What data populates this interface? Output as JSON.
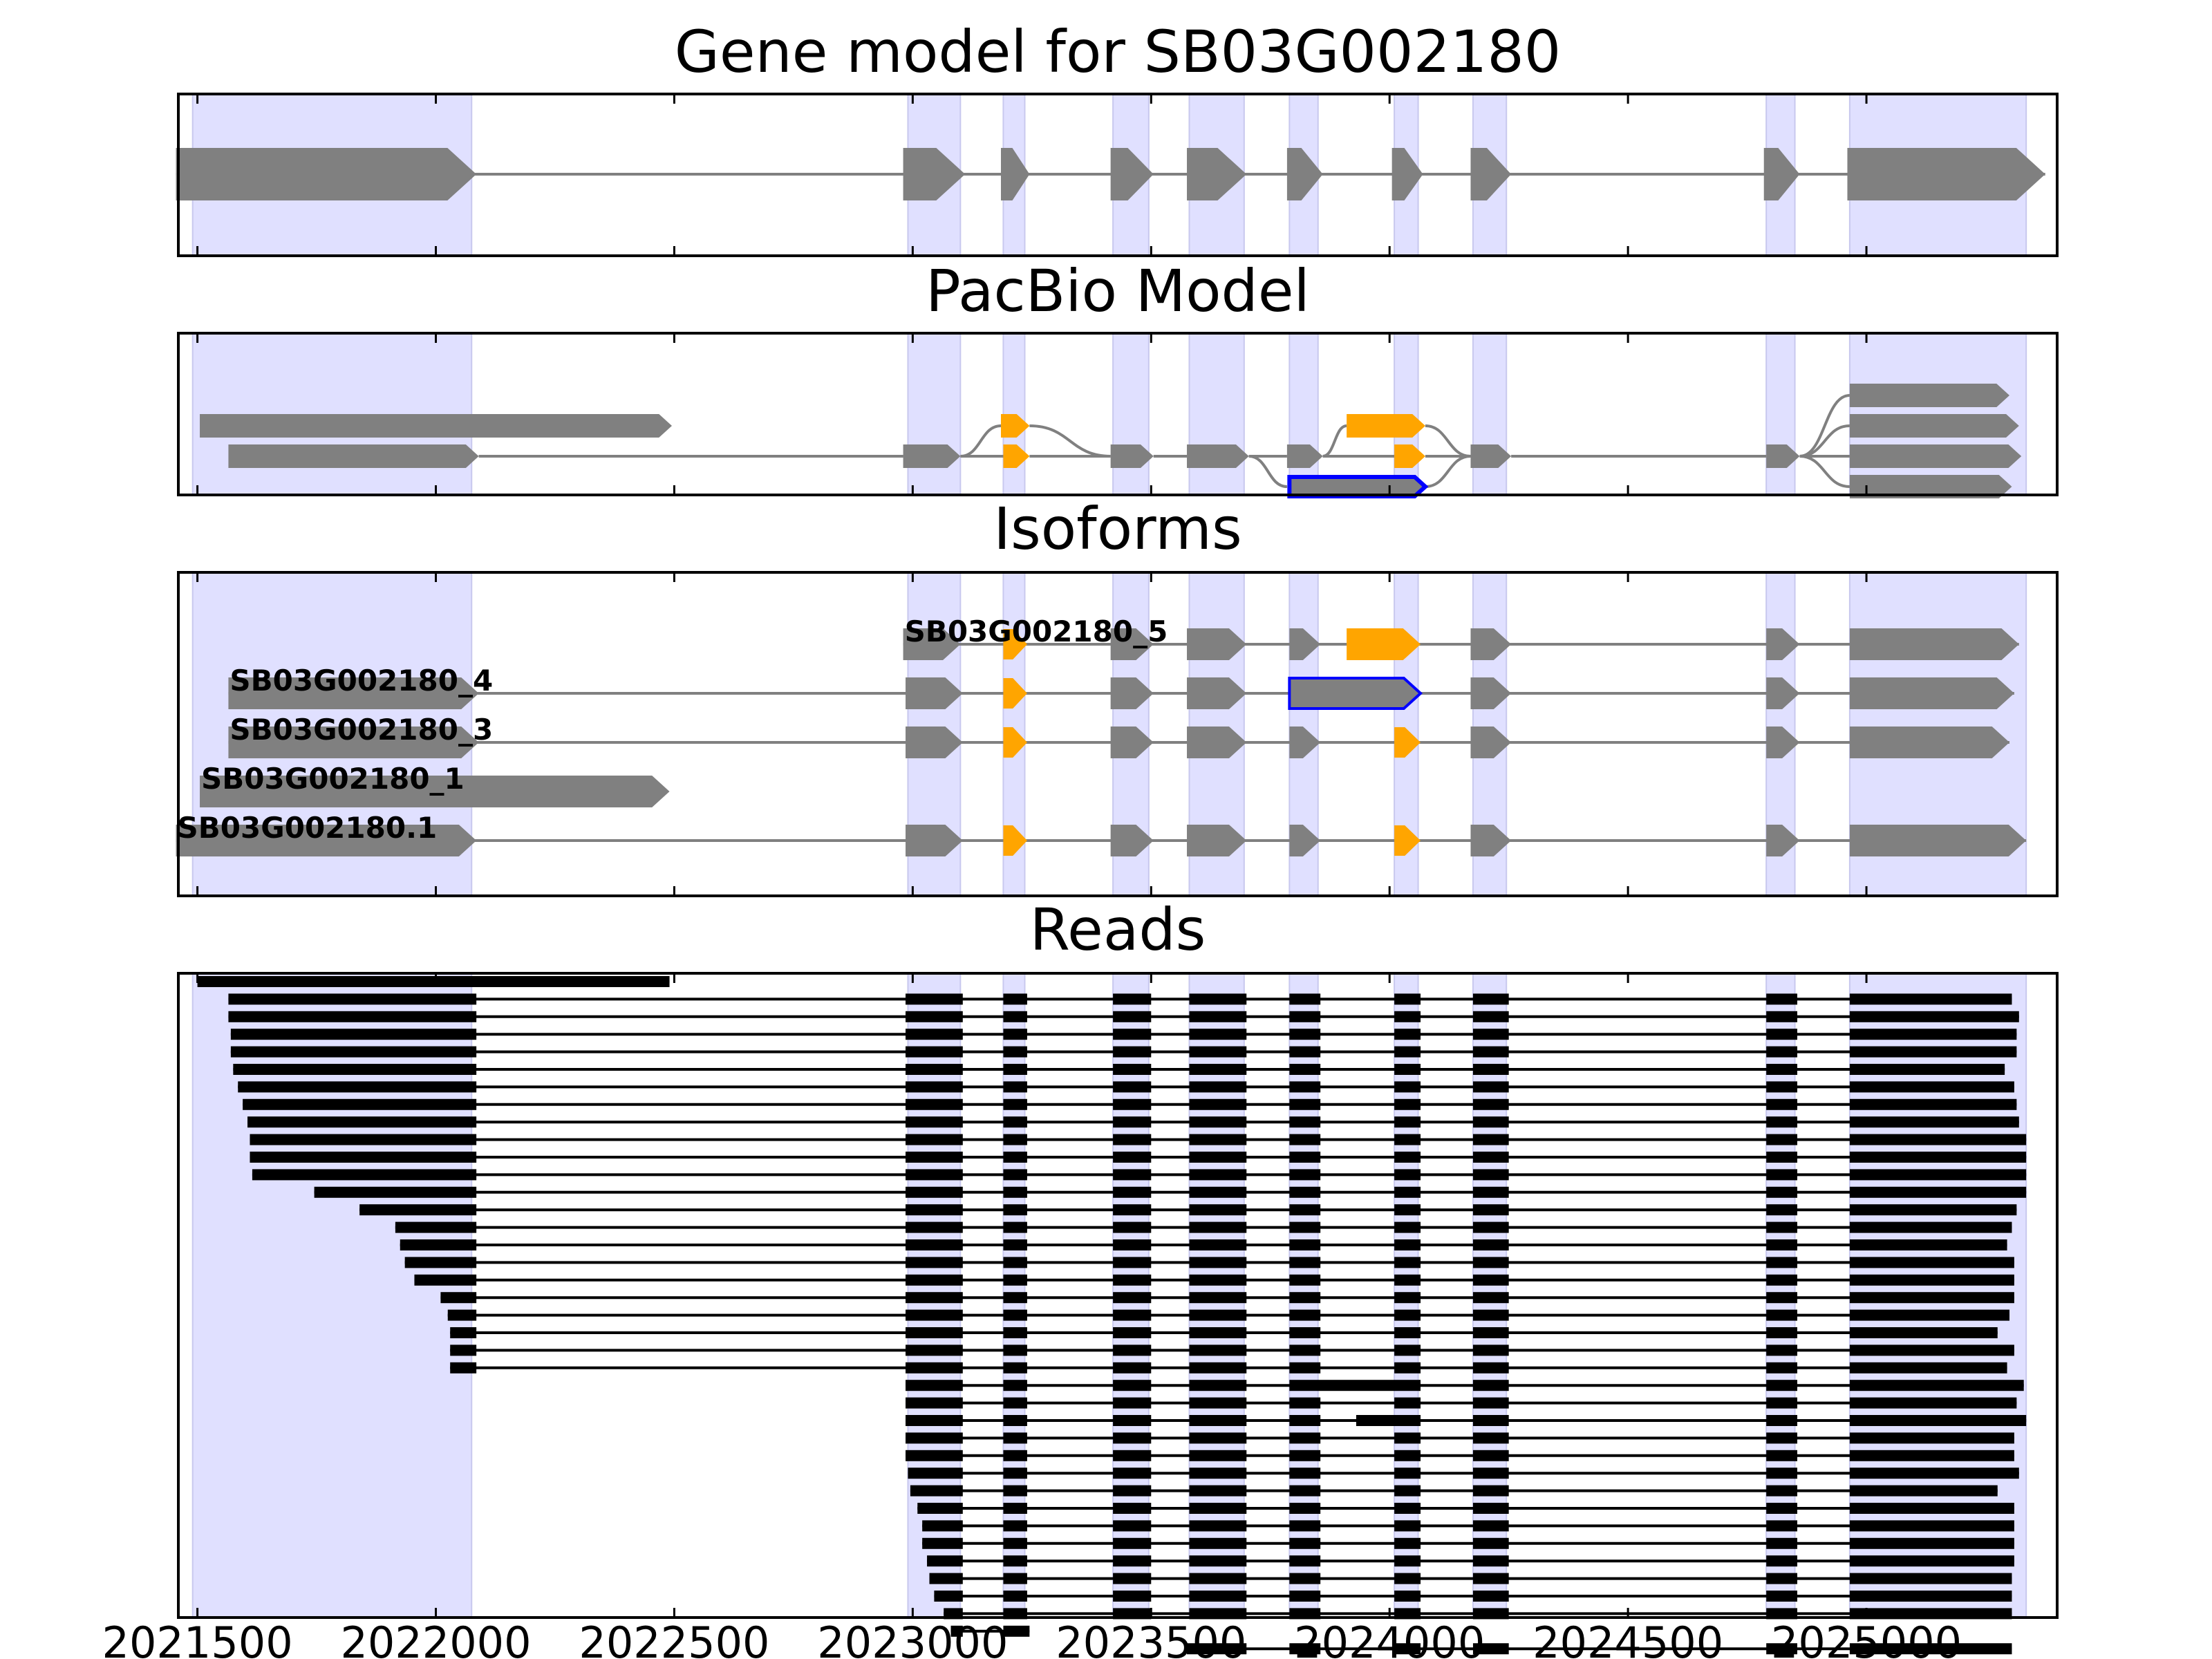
{
  "chart_data": {
    "type": "gene-model",
    "xlim": [
      2021460,
      2025400
    ],
    "x_ticks": [
      "2021500",
      "2022000",
      "2022500",
      "2023000",
      "2023500",
      "2024000",
      "2024500",
      "2025000"
    ],
    "colors": {
      "exon": "#808080",
      "alt_exon": "#ffa500",
      "highlight": "#0000ff",
      "exon_region": "#e0e0ff",
      "read": "#000000",
      "intron": "#808080"
    },
    "exon_regions": [
      [
        2021490,
        2022075
      ],
      [
        2022990,
        2023100
      ],
      [
        2023190,
        2023235
      ],
      [
        2023420,
        2023495
      ],
      [
        2023580,
        2023695
      ],
      [
        2023790,
        2023850
      ],
      [
        2024010,
        2024060
      ],
      [
        2024175,
        2024245
      ],
      [
        2024790,
        2024850
      ],
      [
        2024965,
        2025335
      ]
    ],
    "panels": [
      {
        "title": "Gene model for SB03G002180",
        "features": [
          {
            "row": 0,
            "color": "exon",
            "exons": [
              [
                2021455,
                2022085
              ],
              [
                2022980,
                2023110
              ],
              [
                2023185,
                2023245
              ],
              [
                2023415,
                2023505
              ],
              [
                2023575,
                2023700
              ],
              [
                2023785,
                2023860
              ],
              [
                2024005,
                2024070
              ],
              [
                2024170,
                2024255
              ],
              [
                2024785,
                2024860
              ],
              [
                2024960,
                2025375
              ]
            ]
          }
        ],
        "curves": []
      },
      {
        "title": "PacBio Model",
        "features": [
          {
            "row": 0,
            "color": "exon",
            "exons": [
              [
                2021505,
                2022495
              ]
            ]
          },
          {
            "row": 1,
            "color": "exon",
            "exons": [
              [
                2021565,
                2022090
              ],
              [
                2022980,
                2023100
              ]
            ]
          },
          {
            "row": 0,
            "color": "alt_exon",
            "exons": [
              [
                2023185,
                2023245
              ]
            ]
          },
          {
            "row": 1,
            "color": "alt_exon",
            "exons": [
              [
                2023190,
                2023245
              ]
            ]
          },
          {
            "row": 1,
            "color": "exon",
            "exons": [
              [
                2023415,
                2023505
              ],
              [
                2023575,
                2023705
              ],
              [
                2023785,
                2023860
              ]
            ]
          },
          {
            "row": 0,
            "color": "alt_exon",
            "exons": [
              [
                2023910,
                2024075
              ]
            ]
          },
          {
            "row": 1,
            "color": "alt_exon",
            "exons": [
              [
                2024010,
                2024075
              ]
            ]
          },
          {
            "row": 2,
            "color": "highlight",
            "exons": [
              [
                2023790,
                2024075
              ]
            ]
          },
          {
            "row": 1,
            "color": "exon",
            "exons": [
              [
                2024170,
                2024255
              ],
              [
                2024790,
                2024860
              ]
            ]
          },
          {
            "row": -1,
            "color": "exon",
            "exons": [
              [
                2024965,
                2025300
              ]
            ]
          },
          {
            "row": 0,
            "color": "exon",
            "exons": [
              [
                2024965,
                2025320
              ]
            ]
          },
          {
            "row": 1,
            "color": "exon",
            "exons": [
              [
                2024965,
                2025325
              ]
            ]
          },
          {
            "row": 2,
            "color": "exon",
            "exons": [
              [
                2024965,
                2025305
              ]
            ]
          }
        ],
        "curves": [
          [
            2023100,
            1,
            2023185,
            0
          ],
          [
            2023100,
            1,
            2023190,
            1
          ],
          [
            2023245,
            0,
            2023415,
            1
          ],
          [
            2023245,
            1,
            2023415,
            1
          ],
          [
            2023705,
            1,
            2023785,
            2
          ],
          [
            2023705,
            1,
            2023785,
            1
          ],
          [
            2023860,
            1,
            2023910,
            0
          ],
          [
            2023860,
            1,
            2024010,
            1
          ],
          [
            2024075,
            0,
            2024170,
            1
          ],
          [
            2024075,
            1,
            2024170,
            1
          ],
          [
            2024075,
            2,
            2024170,
            1
          ],
          [
            2024860,
            1,
            2024965,
            -1
          ],
          [
            2024860,
            1,
            2024965,
            0
          ],
          [
            2024860,
            1,
            2024965,
            1
          ],
          [
            2024860,
            1,
            2024965,
            2
          ]
        ]
      },
      {
        "title": "Isoforms",
        "features": [
          {
            "row": 0,
            "label": "SB03G002180_5",
            "color": "exon",
            "exons": [
              [
                2022980,
                2023100
              ],
              [
                2023415,
                2023505
              ],
              [
                2023575,
                2023700
              ],
              [
                2023790,
                2023855
              ],
              [
                2024170,
                2024255
              ],
              [
                2024790,
                2024860
              ],
              [
                2024965,
                2025320
              ]
            ],
            "alt": [
              [
                2023910,
                2024065
              ]
            ],
            "alt_small": [
              [
                2023190,
                2023240
              ]
            ]
          },
          {
            "row": 1,
            "label": "SB03G002180_4",
            "color": "exon",
            "exons": [
              [
                2021565,
                2022090
              ],
              [
                2022985,
                2023105
              ],
              [
                2023415,
                2023505
              ],
              [
                2023575,
                2023700
              ],
              [
                2024170,
                2024255
              ],
              [
                2024790,
                2024860
              ],
              [
                2024965,
                2025310
              ]
            ],
            "alt_small": [
              [
                2023190,
                2023240
              ]
            ],
            "hl": [
              [
                2023790,
                2024065
              ]
            ]
          },
          {
            "row": 2,
            "label": "SB03G002180_3",
            "color": "exon",
            "exons": [
              [
                2021565,
                2022090
              ],
              [
                2022985,
                2023105
              ],
              [
                2023415,
                2023505
              ],
              [
                2023575,
                2023700
              ],
              [
                2023790,
                2023855
              ],
              [
                2024170,
                2024255
              ],
              [
                2024790,
                2024860
              ],
              [
                2024965,
                2025300
              ]
            ],
            "alt_small": [
              [
                2023190,
                2023240
              ],
              [
                2024010,
                2024065
              ]
            ]
          },
          {
            "row": 3,
            "label": "SB03G002180_1",
            "color": "exon",
            "exons": [
              [
                2021505,
                2022490
              ]
            ]
          },
          {
            "row": 4,
            "label": "SB03G002180.1",
            "color": "exon",
            "exons": [
              [
                2021455,
                2022085
              ],
              [
                2022985,
                2023105
              ],
              [
                2023415,
                2023505
              ],
              [
                2023575,
                2023700
              ],
              [
                2023790,
                2023855
              ],
              [
                2024170,
                2024255
              ],
              [
                2024790,
                2024860
              ],
              [
                2024965,
                2025335
              ]
            ],
            "alt_small": [
              [
                2023190,
                2023240
              ],
              [
                2024010,
                2024065
              ]
            ]
          }
        ]
      }
    ],
    "reads_title": "Reads",
    "reads_start_left": [
      2021500,
      2021565,
      2021565,
      2021570,
      2021570,
      2021575,
      2021585,
      2021595,
      2021605,
      2021610,
      2021610,
      2021615,
      2021745,
      2021840,
      2021915,
      2021925,
      2021935,
      2021955,
      2022010,
      2022025,
      2022030,
      2022030,
      2022030
    ],
    "reads_end_left": [
      2022490
    ],
    "reads_end_right": [
      2025305,
      2025320,
      2025315,
      2025315,
      2025290,
      2025310,
      2025315,
      2025320,
      2025335,
      2025335,
      2025335,
      2025335,
      2025315,
      2025305,
      2025295,
      2025310,
      2025310,
      2025310,
      2025300,
      2025275,
      2025310,
      2025295,
      2025315
    ],
    "reads_start_mid": [
      2022985,
      2022985,
      2022985,
      2022985,
      2022985,
      2022990,
      2022995,
      2023010,
      2023020,
      2023020,
      2023030,
      2023035,
      2023045,
      2023065,
      2023080
    ],
    "reads_end_mid": [
      2025330,
      2025315,
      2025335,
      2025310,
      2025310,
      2025320,
      2025275,
      2025310,
      2025310,
      2025310,
      2025310,
      2025305,
      2025305,
      2025305,
      2023245
    ],
    "reads_start_late": [
      2023575,
      2023575,
      2023575
    ],
    "reads_end_late": [
      2025305,
      2025305,
      2025305
    ]
  }
}
